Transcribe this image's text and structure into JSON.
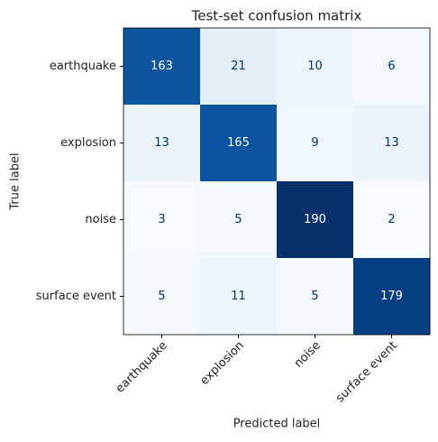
{
  "chart_data": {
    "type": "heatmap",
    "title": "Test-set confusion matrix",
    "x_label": "Predicted label",
    "y_label": "True label",
    "columns": [
      "earthquake",
      "explosion",
      "noise",
      "surface event"
    ],
    "rows": [
      "earthquake",
      "explosion",
      "noise",
      "surface event"
    ],
    "values": [
      [
        163,
        21,
        10,
        6
      ],
      [
        13,
        165,
        9,
        13
      ],
      [
        3,
        5,
        190,
        2
      ],
      [
        5,
        11,
        5,
        179
      ]
    ],
    "colormap": "Blues"
  }
}
